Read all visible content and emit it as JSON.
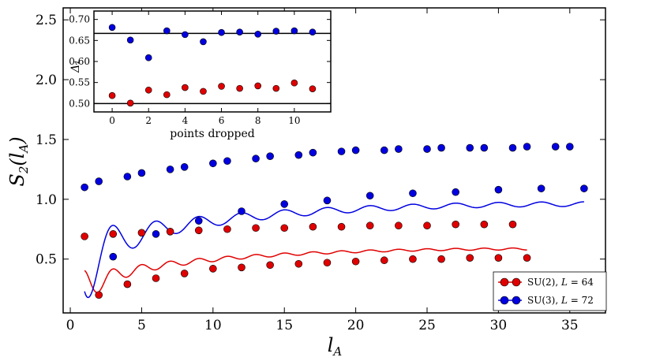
{
  "chart_data": [
    {
      "type": "scatter",
      "xlabel": "l_A",
      "ylabel": "S_2(l_A)",
      "xlim": [
        -0.5,
        37.5
      ],
      "ylim": [
        0.05,
        2.6
      ],
      "xticks": [
        {
          "value": 0,
          "label": "0"
        },
        {
          "value": 5,
          "label": "5"
        },
        {
          "value": 10,
          "label": "10"
        },
        {
          "value": 15,
          "label": "15"
        },
        {
          "value": 20,
          "label": "20"
        },
        {
          "value": 25,
          "label": "25"
        },
        {
          "value": 30,
          "label": "30"
        },
        {
          "value": 35,
          "label": "35"
        }
      ],
      "yticks": [
        {
          "value": 0.5,
          "label": "0.5"
        },
        {
          "value": 1.0,
          "label": "1.0"
        },
        {
          "value": 1.5,
          "label": "1.5"
        },
        {
          "value": 2.0,
          "label": "2.0"
        },
        {
          "value": 2.5,
          "label": "2.5"
        }
      ],
      "legend_position": "bottom-right",
      "series": [
        {
          "name": "SU(2), L = 64",
          "label_main": "SU(2), ",
          "label_var": "L",
          "label_value": " = 64",
          "color": "#e00000",
          "fit": {
            "func": "A*ln(chord) + B + C*cos(2*pi*x/2)/chord",
            "A": 0.117,
            "B": 0.232,
            "C": -0.172,
            "period_L": 64,
            "wave_period": 2,
            "x_range": [
              1,
              32
            ]
          },
          "x": [
            1,
            2,
            3,
            4,
            5,
            6,
            7,
            8,
            9,
            10,
            11,
            12,
            13,
            14,
            15,
            16,
            17,
            18,
            19,
            20,
            21,
            22,
            23,
            24,
            25,
            26,
            27,
            28,
            29,
            30,
            31,
            32
          ],
          "y": [
            0.69,
            0.2,
            0.71,
            0.29,
            0.72,
            0.34,
            0.73,
            0.38,
            0.74,
            0.42,
            0.75,
            0.43,
            0.76,
            0.45,
            0.76,
            0.46,
            0.77,
            0.47,
            0.77,
            0.48,
            0.78,
            0.49,
            0.78,
            0.5,
            0.78,
            0.5,
            0.79,
            0.51,
            0.79,
            0.51,
            0.79,
            0.51
          ]
        },
        {
          "name": "SU(3), L = 72",
          "label_main": "SU(3), ",
          "label_var": "L",
          "label_value": " = 72",
          "color": "#0000e0",
          "fit": {
            "func": "A*ln(chord) + B + C*cos(2*pi*x/3)/chord",
            "A": 0.161,
            "B": 0.455,
            "C": 0.45,
            "period_L": 72,
            "wave_period": 3,
            "x_range": [
              1,
              36
            ]
          },
          "x": [
            1,
            2,
            3,
            4,
            5,
            6,
            7,
            8,
            9,
            10,
            11,
            12,
            13,
            14,
            15,
            16,
            17,
            18,
            19,
            20,
            21,
            22,
            23,
            24,
            25,
            26,
            27,
            28,
            29,
            30,
            31,
            32,
            33,
            34,
            35,
            36
          ],
          "y": [
            1.1,
            1.15,
            0.52,
            1.19,
            1.22,
            0.71,
            1.25,
            1.27,
            0.82,
            1.3,
            1.32,
            0.9,
            1.34,
            1.36,
            0.96,
            1.37,
            1.39,
            0.99,
            1.4,
            1.41,
            1.03,
            1.41,
            1.42,
            1.05,
            1.42,
            1.43,
            1.06,
            1.43,
            1.43,
            1.08,
            1.43,
            1.44,
            1.09,
            1.44,
            1.44,
            1.09
          ]
        }
      ]
    },
    {
      "type": "scatter",
      "xlabel": "points dropped",
      "ylabel": "Δ₁",
      "xlim": [
        -1,
        12
      ],
      "ylim": [
        0.48,
        0.72
      ],
      "xticks": [
        {
          "value": 0,
          "label": "0"
        },
        {
          "value": 2,
          "label": "2"
        },
        {
          "value": 4,
          "label": "4"
        },
        {
          "value": 6,
          "label": "6"
        },
        {
          "value": 8,
          "label": "8"
        },
        {
          "value": 10,
          "label": "10"
        }
      ],
      "yticks": [
        {
          "value": 0.5,
          "label": "0.50"
        },
        {
          "value": 0.55,
          "label": "0.55"
        },
        {
          "value": 0.6,
          "label": "0.60"
        },
        {
          "value": 0.65,
          "label": "0.65"
        },
        {
          "value": 0.7,
          "label": "0.70"
        }
      ],
      "reference_lines": [
        0.5,
        0.6667
      ],
      "series": [
        {
          "name": "SU(2)",
          "color": "#e00000",
          "x": [
            0,
            1,
            2,
            3,
            4,
            5,
            6,
            7,
            8,
            9,
            10,
            11
          ],
          "y": [
            0.519,
            0.501,
            0.532,
            0.521,
            0.538,
            0.529,
            0.541,
            0.536,
            0.542,
            0.536,
            0.549,
            0.535
          ]
        },
        {
          "name": "SU(3)",
          "color": "#0000e0",
          "x": [
            0,
            1,
            2,
            3,
            4,
            5,
            6,
            7,
            8,
            9,
            10,
            11
          ],
          "y": [
            0.681,
            0.651,
            0.609,
            0.673,
            0.664,
            0.647,
            0.669,
            0.67,
            0.665,
            0.672,
            0.673,
            0.67
          ]
        }
      ]
    }
  ]
}
